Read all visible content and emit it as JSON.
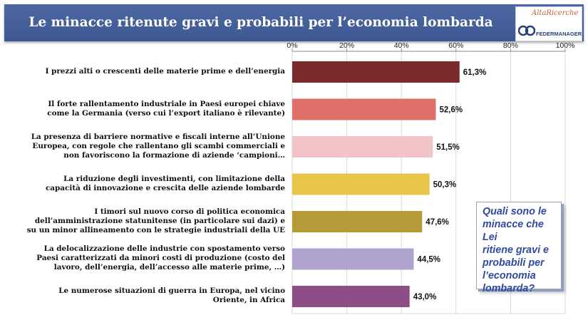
{
  "header": {
    "title": "Le minacce ritenute gravi e probabili per l’economia lombarda",
    "logo_top_text": "AltaRicerche",
    "logo_bottom_text": "FEDERMANAGER"
  },
  "chart_data": {
    "type": "bar",
    "orientation": "horizontal",
    "xlim": [
      0,
      100
    ],
    "x_ticks": [
      "0%",
      "20%",
      "40%",
      "60%",
      "80%",
      "100%"
    ],
    "grid": true,
    "categories": [
      [
        "I prezzi alti o crescenti delle materie prime e dell’energia"
      ],
      [
        "Il forte rallentamento industriale in Paesi europei chiave",
        "come la Germania (verso cui l’export italiano è rilevante)"
      ],
      [
        "La presenza di barriere normative e fiscali interne all’Unione",
        "Europea, con regole che rallentano gli scambi commerciali e",
        "non favoriscono la formazione di aziende ‘campioni…"
      ],
      [
        "La riduzione degli investimenti, con limitazione della",
        "capacità di innovazione e crescita delle aziende lombarde"
      ],
      [
        "I timori sul nuovo corso di politica economica",
        "dell’amministrazione statunitense (in particolare sui dazi) e",
        "su un minor allineamento con le strategie industriali della UE"
      ],
      [
        "La delocalizzazione delle industrie con spostamento verso",
        "Paesi caratterizzati da minori costi di produzione (costo del",
        "lavoro, dell’energia, dell’accesso alle materie prime, …)"
      ],
      [
        "Le numerose situazioni di guerra in Europa, nel vicino",
        "Oriente, in Africa"
      ]
    ],
    "values": [
      61.3,
      52.6,
      51.5,
      50.3,
      47.6,
      44.5,
      43.0
    ],
    "value_labels": [
      "61,3%",
      "52,6%",
      "51,5%",
      "50,3%",
      "47,6%",
      "44,5%",
      "43,0%"
    ],
    "colors": [
      "#7b2a2d",
      "#e06f6a",
      "#f2c4c7",
      "#e9c64a",
      "#b59a38",
      "#b0a3d0",
      "#8e4d86"
    ]
  },
  "question_box": {
    "lines": [
      "Quali sono le",
      "minacce che Lei",
      "ritiene gravi e",
      "probabili per",
      "l’economia",
      "lombarda?"
    ]
  }
}
